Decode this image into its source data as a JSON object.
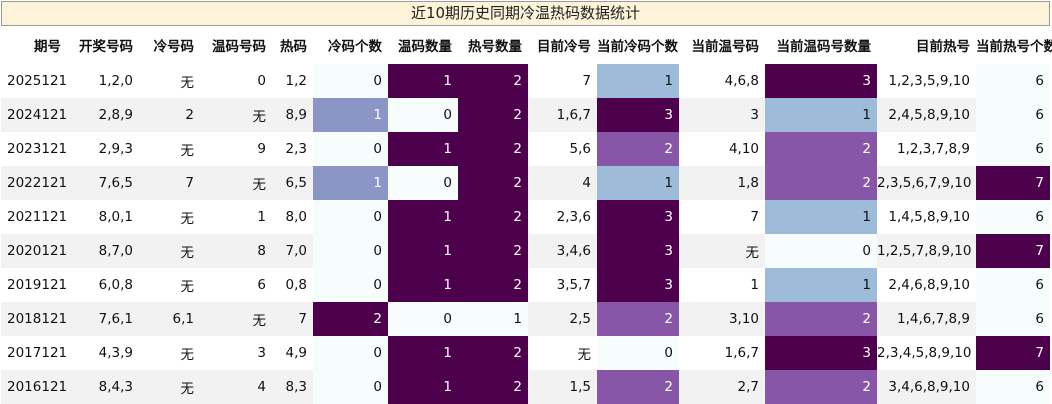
{
  "title": "近10期历史同期冷温热码数据统计",
  "chart_data": {
    "type": "table",
    "title": "近10期历史同期冷温热码数据统计",
    "columns": [
      "期号",
      "开奖号码",
      "冷号码",
      "温码号码",
      "热码",
      "冷码个数",
      "温码数量",
      "热号数量",
      "目前冷号",
      "当前冷码个数",
      "当前温号码",
      "当前温码号数量",
      "目前热号",
      "当前热号个数"
    ],
    "rows": [
      [
        "2025121",
        "1,2,0",
        "无",
        "0",
        "1,2",
        "0",
        "1",
        "2",
        "7",
        "1",
        "4,6,8",
        "3",
        "1,2,3,5,9,10",
        "6"
      ],
      [
        "2024121",
        "2,8,9",
        "2",
        "无",
        "8,9",
        "1",
        "0",
        "2",
        "1,6,7",
        "3",
        "3",
        "1",
        "2,4,5,8,9,10",
        "6"
      ],
      [
        "2023121",
        "2,9,3",
        "无",
        "9",
        "2,3",
        "0",
        "1",
        "2",
        "5,6",
        "2",
        "4,10",
        "2",
        "1,2,3,7,8,9",
        "6"
      ],
      [
        "2022121",
        "7,6,5",
        "7",
        "无",
        "6,5",
        "1",
        "0",
        "2",
        "4",
        "1",
        "1,8",
        "2",
        "2,3,5,6,7,9,10",
        "7"
      ],
      [
        "2021121",
        "8,0,1",
        "无",
        "1",
        "8,0",
        "0",
        "1",
        "2",
        "2,3,6",
        "3",
        "7",
        "1",
        "1,4,5,8,9,10",
        "6"
      ],
      [
        "2020121",
        "8,7,0",
        "无",
        "8",
        "7,0",
        "0",
        "1",
        "2",
        "3,4,6",
        "3",
        "无",
        "0",
        "1,2,5,7,8,9,10",
        "7"
      ],
      [
        "2019121",
        "6,0,8",
        "无",
        "6",
        "0,8",
        "0",
        "1",
        "2",
        "3,5,7",
        "3",
        "1",
        "1",
        "2,4,6,8,9,10",
        "6"
      ],
      [
        "2018121",
        "7,6,1",
        "6,1",
        "无",
        "7",
        "2",
        "0",
        "1",
        "2,5",
        "2",
        "3,10",
        "2",
        "1,4,6,7,8,9",
        "6"
      ],
      [
        "2017121",
        "4,3,9",
        "无",
        "3",
        "4,9",
        "0",
        "1",
        "2",
        "无",
        "0",
        "1,6,7",
        "3",
        "2,3,4,5,8,9,10",
        "7"
      ],
      [
        "2016121",
        "8,4,3",
        "无",
        "4",
        "8,3",
        "0",
        "1",
        "2",
        "1,5",
        "2",
        "2,7",
        "2",
        "3,4,6,8,9,10",
        "6"
      ]
    ],
    "heat_columns": [
      5,
      6,
      7,
      9,
      11,
      13
    ],
    "colors": {
      "zero": "#f7fcfd",
      "one_in_cold_count": "#8c96c6",
      "one_light": "#9ebcda",
      "two": "#8856a7",
      "max": "#4d004b",
      "title_bg": "#fcf3d8",
      "row_alt": "#f2f2f2"
    }
  }
}
